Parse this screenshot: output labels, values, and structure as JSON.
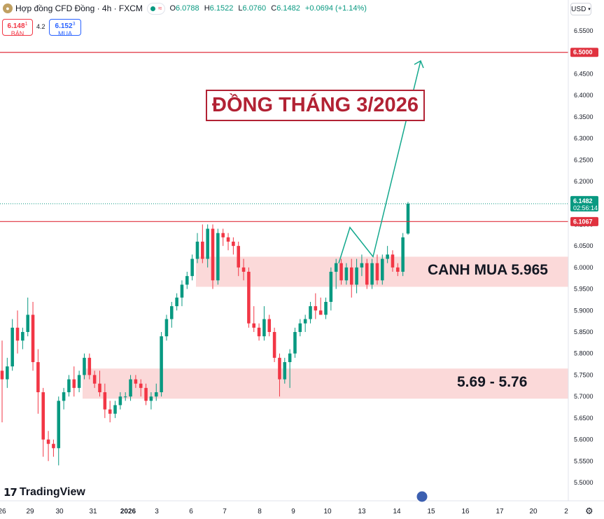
{
  "header": {
    "symbol": "Hợp đồng CFD Đồng · 4h · FXCM",
    "o_label": "O",
    "o_value": "6.0788",
    "h_label": "H",
    "h_value": "6.1522",
    "l_label": "L",
    "l_value": "6.0760",
    "c_label": "C",
    "c_value": "6.1482",
    "change": "+0.0694 (+1.14%)",
    "currency": "USD"
  },
  "quote": {
    "sell_price": "6.148",
    "sell_sup": "1",
    "sell_label": "BÁN",
    "spread": "4.2",
    "buy_price": "6.152",
    "buy_sup": "3",
    "buy_label": "MUA"
  },
  "annotations": {
    "title": "ĐỒNG THÁNG 3/2026",
    "zone_upper": "CANH MUA 5.965",
    "zone_lower": "5.69 - 5.76"
  },
  "brand": {
    "name": "TradingView"
  },
  "colors": {
    "up": "#089981",
    "down": "#f23645",
    "zone": "#fbd9d9",
    "hline": "#e0323f",
    "arrow": "#13a88d",
    "title": "#b22234"
  },
  "chart_data": {
    "type": "candlestick",
    "ylim": [
      5.48,
      6.57
    ],
    "y_ticks": [
      "6.5500",
      "6.5000",
      "6.4500",
      "6.4000",
      "6.3500",
      "6.3000",
      "6.2500",
      "6.2000",
      "6.1500",
      "6.1000",
      "6.0500",
      "6.0000",
      "5.9500",
      "5.9000",
      "5.8500",
      "5.8000",
      "5.7500",
      "5.7000",
      "5.6500",
      "5.6000",
      "5.5500",
      "5.5000"
    ],
    "x_ticks": [
      "26",
      "29",
      "30",
      "31",
      "2026",
      "3",
      "6",
      "7",
      "8",
      "9",
      "10",
      "13",
      "14",
      "15",
      "16",
      "17",
      "20",
      "2"
    ],
    "price_labels": {
      "resistance_high": "6.5000",
      "current": "6.1482",
      "countdown": "02:56:14",
      "resistance_low": "6.1067"
    },
    "levels": {
      "resistance_high": 6.5,
      "resistance_low": 6.1067,
      "current": 6.1482
    },
    "zones": [
      {
        "name": "CANH MUA 5.965",
        "from": 5.955,
        "to": 6.025
      },
      {
        "name": "5.69 - 5.76",
        "from": 5.695,
        "to": 5.765
      }
    ],
    "candles": [
      [
        5.76,
        5.83,
        5.64,
        5.74
      ],
      [
        5.74,
        5.79,
        5.72,
        5.77
      ],
      [
        5.77,
        5.88,
        5.76,
        5.86
      ],
      [
        5.86,
        5.9,
        5.8,
        5.83
      ],
      [
        5.83,
        5.86,
        5.81,
        5.85
      ],
      [
        5.85,
        5.93,
        5.84,
        5.89
      ],
      [
        5.89,
        5.92,
        5.76,
        5.78
      ],
      [
        5.78,
        5.81,
        5.66,
        5.71
      ],
      [
        5.71,
        5.72,
        5.56,
        5.6
      ],
      [
        5.6,
        5.62,
        5.55,
        5.59
      ],
      [
        5.59,
        5.6,
        5.56,
        5.58
      ],
      [
        5.58,
        5.7,
        5.54,
        5.69
      ],
      [
        5.69,
        5.72,
        5.67,
        5.71
      ],
      [
        5.71,
        5.75,
        5.7,
        5.74
      ],
      [
        5.74,
        5.77,
        5.7,
        5.72
      ],
      [
        5.72,
        5.76,
        5.71,
        5.75
      ],
      [
        5.75,
        5.8,
        5.74,
        5.79
      ],
      [
        5.79,
        5.8,
        5.74,
        5.75
      ],
      [
        5.75,
        5.76,
        5.72,
        5.73
      ],
      [
        5.73,
        5.76,
        5.7,
        5.71
      ],
      [
        5.71,
        5.73,
        5.65,
        5.67
      ],
      [
        5.67,
        5.69,
        5.64,
        5.66
      ],
      [
        5.66,
        5.69,
        5.65,
        5.68
      ],
      [
        5.68,
        5.71,
        5.67,
        5.7
      ],
      [
        5.7,
        5.71,
        5.69,
        5.7
      ],
      [
        5.7,
        5.75,
        5.69,
        5.74
      ],
      [
        5.74,
        5.75,
        5.72,
        5.73
      ],
      [
        5.73,
        5.74,
        5.7,
        5.72
      ],
      [
        5.72,
        5.73,
        5.68,
        5.69
      ],
      [
        5.69,
        5.71,
        5.67,
        5.7
      ],
      [
        5.7,
        5.73,
        5.69,
        5.71
      ],
      [
        5.71,
        5.85,
        5.7,
        5.84
      ],
      [
        5.84,
        5.89,
        5.83,
        5.88
      ],
      [
        5.88,
        5.92,
        5.86,
        5.91
      ],
      [
        5.91,
        5.94,
        5.9,
        5.93
      ],
      [
        5.93,
        5.97,
        5.91,
        5.96
      ],
      [
        5.96,
        5.99,
        5.95,
        5.98
      ],
      [
        5.98,
        6.03,
        5.97,
        6.02
      ],
      [
        6.02,
        6.08,
        6.01,
        6.06
      ],
      [
        6.06,
        6.1,
        6.01,
        6.02
      ],
      [
        6.02,
        6.1,
        6.0,
        6.09
      ],
      [
        6.09,
        6.1,
        5.95,
        5.97
      ],
      [
        5.97,
        6.09,
        5.96,
        6.08
      ],
      [
        6.08,
        6.09,
        6.05,
        6.07
      ],
      [
        6.07,
        6.08,
        6.04,
        6.06
      ],
      [
        6.06,
        6.07,
        6.03,
        6.05
      ],
      [
        6.05,
        6.06,
        5.98,
        6.0
      ],
      [
        6.0,
        6.02,
        5.97,
        5.99
      ],
      [
        5.99,
        6.0,
        5.86,
        5.87
      ],
      [
        5.87,
        5.91,
        5.85,
        5.86
      ],
      [
        5.86,
        5.87,
        5.83,
        5.84
      ],
      [
        5.84,
        5.91,
        5.83,
        5.88
      ],
      [
        5.88,
        5.89,
        5.84,
        5.85
      ],
      [
        5.85,
        5.86,
        5.78,
        5.79
      ],
      [
        5.79,
        5.8,
        5.7,
        5.74
      ],
      [
        5.74,
        5.79,
        5.73,
        5.78
      ],
      [
        5.78,
        5.81,
        5.72,
        5.8
      ],
      [
        5.8,
        5.86,
        5.79,
        5.85
      ],
      [
        5.85,
        5.88,
        5.84,
        5.87
      ],
      [
        5.87,
        5.89,
        5.85,
        5.88
      ],
      [
        5.88,
        5.92,
        5.87,
        5.91
      ],
      [
        5.91,
        5.94,
        5.88,
        5.9
      ],
      [
        5.9,
        5.93,
        5.89,
        5.89
      ],
      [
        5.89,
        5.93,
        5.88,
        5.92
      ],
      [
        5.92,
        6.0,
        5.9,
        5.99
      ],
      [
        5.99,
        6.02,
        5.95,
        6.01
      ],
      [
        6.01,
        6.02,
        5.96,
        5.97
      ],
      [
        5.97,
        6.01,
        5.96,
        6.0
      ],
      [
        6.0,
        6.02,
        5.93,
        5.96
      ],
      [
        5.96,
        6.02,
        5.94,
        6.0
      ],
      [
        6.0,
        6.03,
        5.98,
        6.01
      ],
      [
        6.01,
        6.02,
        5.95,
        5.96
      ],
      [
        5.96,
        6.02,
        5.95,
        6.01
      ],
      [
        6.01,
        6.03,
        5.96,
        5.97
      ],
      [
        5.97,
        6.03,
        5.96,
        6.02
      ],
      [
        6.02,
        6.05,
        6.01,
        6.03
      ],
      [
        6.03,
        6.04,
        5.99,
        6.0
      ],
      [
        6.0,
        6.01,
        5.98,
        5.99
      ],
      [
        5.99,
        6.08,
        5.98,
        6.07
      ],
      [
        6.0788,
        6.1522,
        6.076,
        6.1482
      ]
    ]
  }
}
